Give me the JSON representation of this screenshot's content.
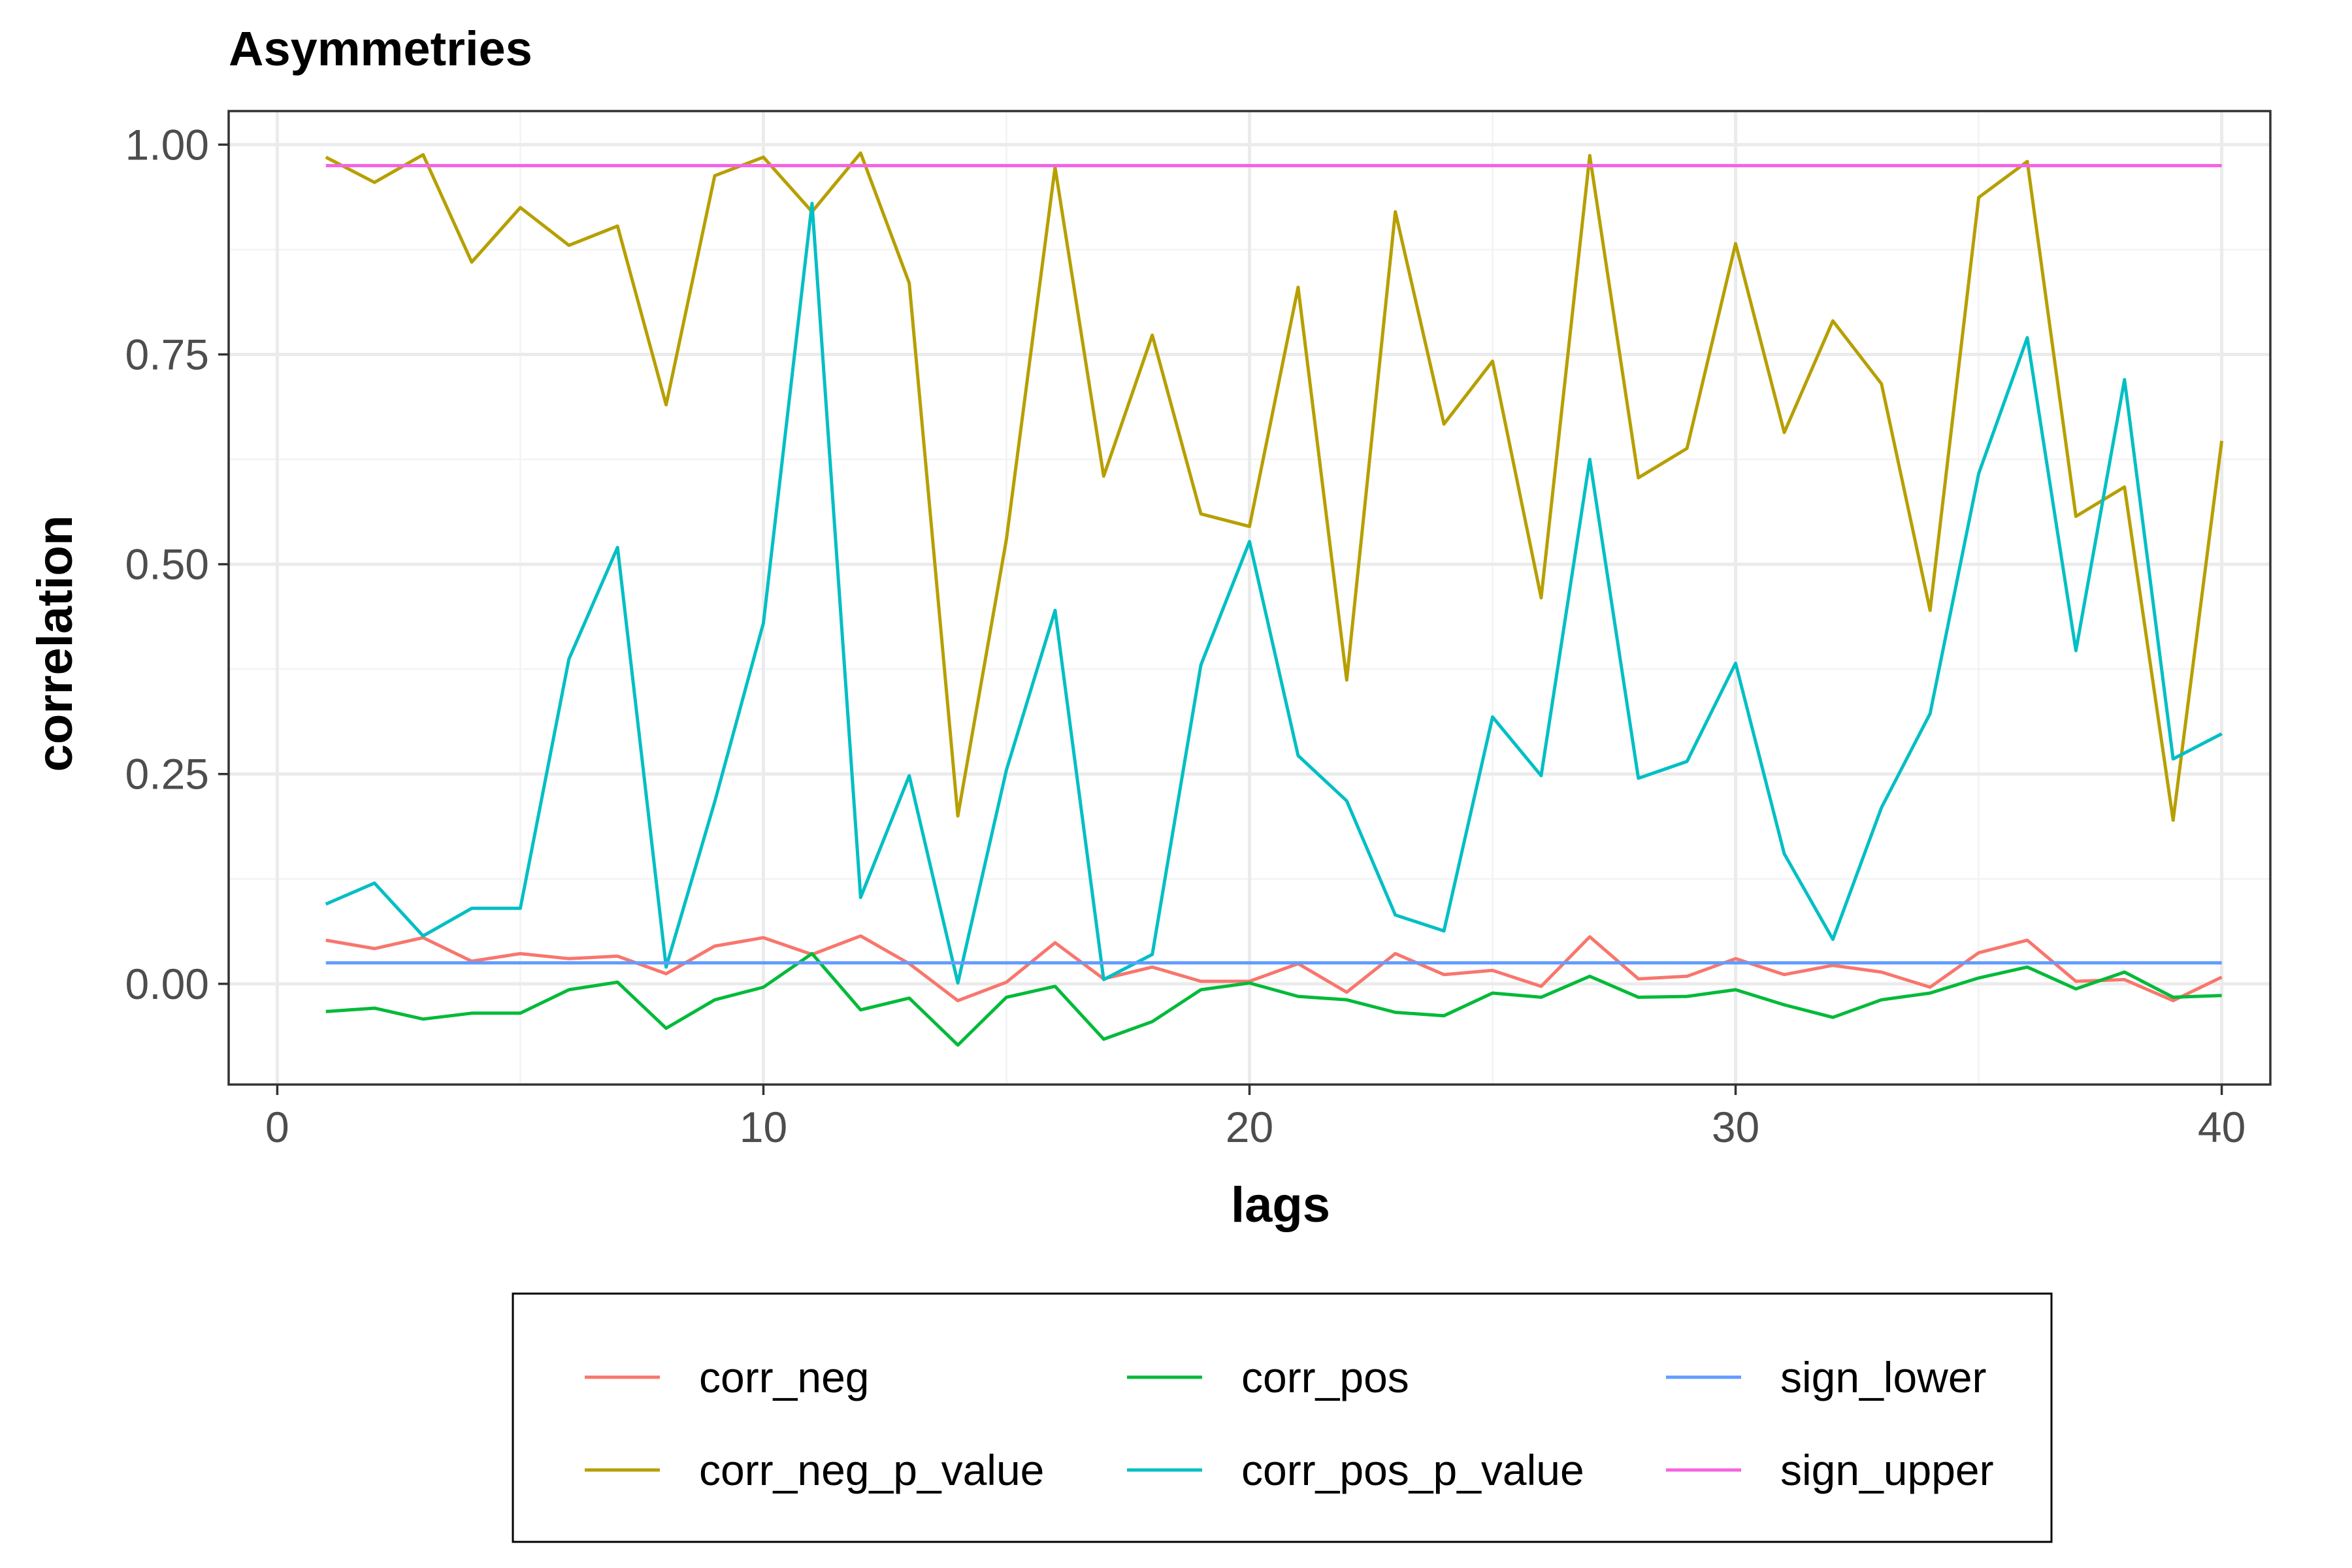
{
  "chart_data": {
    "type": "line",
    "title": "Asymmetries",
    "xlabel": "lags",
    "ylabel": "correlation",
    "xlim": [
      -1,
      41
    ],
    "ylim": [
      -0.12,
      1.04
    ],
    "xticks": [
      0,
      10,
      20,
      30,
      40
    ],
    "xtick_labels": [
      "0",
      "10",
      "20",
      "30",
      "40"
    ],
    "yticks": [
      0,
      0.25,
      0.5,
      0.75,
      1
    ],
    "ytick_labels": [
      "0.00",
      "0.25",
      "0.50",
      "0.75",
      "1.00"
    ],
    "grid": true,
    "legend_position": "bottom",
    "x": [
      1,
      2,
      3,
      4,
      5,
      6,
      7,
      8,
      9,
      10,
      11,
      12,
      13,
      14,
      15,
      16,
      17,
      18,
      19,
      20,
      21,
      22,
      23,
      24,
      25,
      26,
      27,
      28,
      29,
      30,
      31,
      32,
      33,
      34,
      35,
      36,
      37,
      38,
      39,
      40
    ],
    "series": [
      {
        "name": "corr_neg",
        "color": "#f8766d",
        "values": [
          0.052,
          0.042,
          0.055,
          0.027,
          0.036,
          0.03,
          0.033,
          0.012,
          0.045,
          0.055,
          0.035,
          0.057,
          0.024,
          -0.02,
          0.002,
          0.049,
          0.006,
          0.02,
          0.003,
          0.003,
          0.024,
          -0.01,
          0.036,
          0.011,
          0.016,
          -0.003,
          0.056,
          0.006,
          0.009,
          0.03,
          0.011,
          0.022,
          0.014,
          -0.004,
          0.037,
          0.052,
          0.003,
          0.005,
          -0.02,
          0.008
        ]
      },
      {
        "name": "corr_neg_p_value",
        "color": "#b79f00",
        "values": [
          0.985,
          0.955,
          0.988,
          0.86,
          0.925,
          0.88,
          0.903,
          0.69,
          0.963,
          0.985,
          0.92,
          0.99,
          0.835,
          0.2,
          0.53,
          0.973,
          0.605,
          0.773,
          0.56,
          0.545,
          0.83,
          0.362,
          0.92,
          0.667,
          0.742,
          0.46,
          0.987,
          0.603,
          0.638,
          0.882,
          0.657,
          0.79,
          0.715,
          0.445,
          0.937,
          0.98,
          0.557,
          0.592,
          0.195,
          0.647
        ]
      },
      {
        "name": "corr_pos",
        "color": "#00ba38",
        "values": [
          -0.033,
          -0.029,
          -0.042,
          -0.035,
          -0.035,
          -0.007,
          0.002,
          -0.053,
          -0.019,
          -0.004,
          0.036,
          -0.031,
          -0.017,
          -0.073,
          -0.016,
          -0.003,
          -0.066,
          -0.045,
          -0.007,
          0.001,
          -0.015,
          -0.019,
          -0.034,
          -0.038,
          -0.011,
          -0.016,
          0.009,
          -0.016,
          -0.015,
          -0.007,
          -0.025,
          -0.04,
          -0.019,
          -0.011,
          0.007,
          0.02,
          -0.006,
          0.014,
          -0.016,
          -0.014
        ]
      },
      {
        "name": "corr_pos_p_value",
        "color": "#00bfc4",
        "values": [
          0.095,
          0.12,
          0.057,
          0.09,
          0.09,
          0.387,
          0.52,
          0.02,
          0.217,
          0.43,
          0.93,
          0.103,
          0.248,
          0.001,
          0.255,
          0.445,
          0.005,
          0.035,
          0.38,
          0.527,
          0.272,
          0.218,
          0.082,
          0.063,
          0.318,
          0.248,
          0.625,
          0.245,
          0.265,
          0.382,
          0.155,
          0.053,
          0.21,
          0.322,
          0.608,
          0.77,
          0.397,
          0.72,
          0.268,
          0.298
        ]
      },
      {
        "name": "sign_lower",
        "color": "#619cff",
        "values": [
          0.025,
          0.025,
          0.025,
          0.025,
          0.025,
          0.025,
          0.025,
          0.025,
          0.025,
          0.025,
          0.025,
          0.025,
          0.025,
          0.025,
          0.025,
          0.025,
          0.025,
          0.025,
          0.025,
          0.025,
          0.025,
          0.025,
          0.025,
          0.025,
          0.025,
          0.025,
          0.025,
          0.025,
          0.025,
          0.025,
          0.025,
          0.025,
          0.025,
          0.025,
          0.025,
          0.025,
          0.025,
          0.025,
          0.025,
          0.025
        ]
      },
      {
        "name": "sign_upper",
        "color": "#f564e3",
        "values": [
          0.975,
          0.975,
          0.975,
          0.975,
          0.975,
          0.975,
          0.975,
          0.975,
          0.975,
          0.975,
          0.975,
          0.975,
          0.975,
          0.975,
          0.975,
          0.975,
          0.975,
          0.975,
          0.975,
          0.975,
          0.975,
          0.975,
          0.975,
          0.975,
          0.975,
          0.975,
          0.975,
          0.975,
          0.975,
          0.975,
          0.975,
          0.975,
          0.975,
          0.975,
          0.975,
          0.975,
          0.975,
          0.975,
          0.975,
          0.975
        ]
      }
    ]
  }
}
